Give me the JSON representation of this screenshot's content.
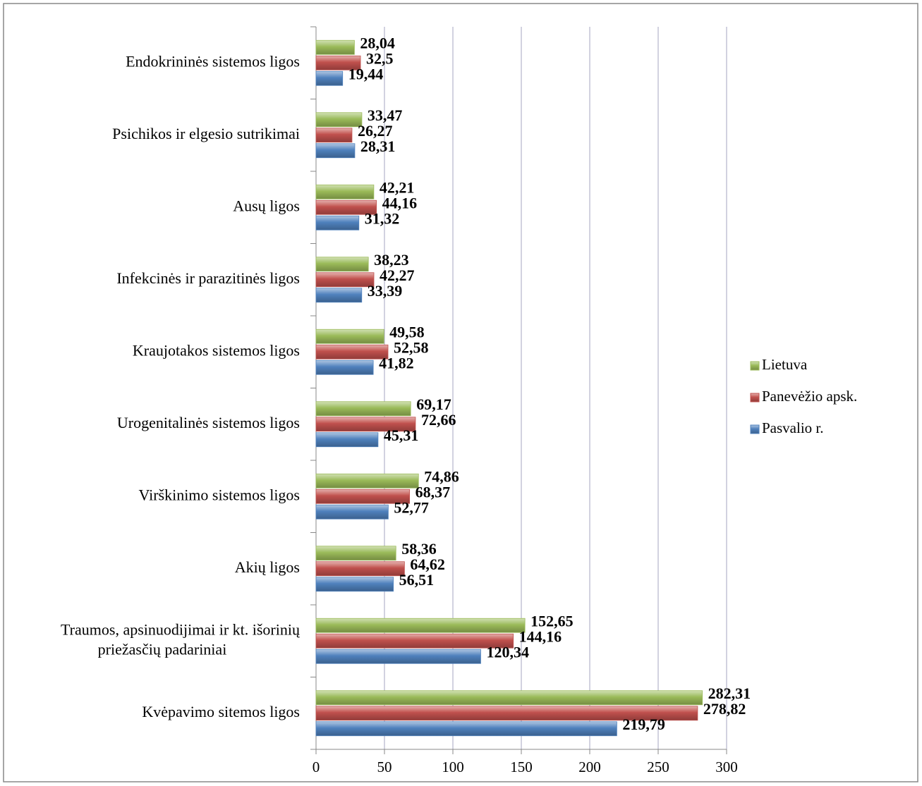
{
  "chart_data": {
    "type": "hbar",
    "categories": [
      "Endokrininės sistemos ligos",
      "Psichikos ir elgesio sutrikimai",
      "Ausų ligos",
      "Infekcinės ir parazitinės ligos",
      "Kraujotakos sistemos ligos",
      "Urogenitalinės sistemos ligos",
      "Virškinimo sistemos ligos",
      "Akių ligos",
      "Traumos, apsinuodijimai ir kt. išorinių priežasčių padariniai",
      "Kvėpavimo sitemos ligos"
    ],
    "series": [
      {
        "name": "Lietuva",
        "color": "#9bbb59",
        "values": [
          28.04,
          33.47,
          42.21,
          38.23,
          49.58,
          69.17,
          74.86,
          58.36,
          152.65,
          282.31
        ],
        "value_labels": [
          "28,04",
          "33,47",
          "42,21",
          "38,23",
          "49,58",
          "69,17",
          "74,86",
          "58,36",
          "152,65",
          "282,31"
        ]
      },
      {
        "name": "Panevėžio apsk.",
        "color": "#c0504d",
        "values": [
          32.5,
          26.27,
          44.16,
          42.27,
          52.58,
          72.66,
          68.37,
          64.62,
          144.16,
          278.82
        ],
        "value_labels": [
          "32,5",
          "26,27",
          "44,16",
          "42,27",
          "52,58",
          "72,66",
          "68,37",
          "64,62",
          "144,16",
          "278,82"
        ]
      },
      {
        "name": "Pasvalio r.",
        "color": "#4f81bd",
        "values": [
          19.44,
          28.31,
          31.32,
          33.39,
          41.82,
          45.31,
          52.77,
          56.51,
          120.34,
          219.79
        ],
        "value_labels": [
          "19,44",
          "28,31",
          "31,32",
          "33,39",
          "41,82",
          "45,31",
          "52,77",
          "56,51",
          "120,34",
          "219,79"
        ]
      }
    ],
    "xlim": [
      0,
      300
    ],
    "xticks": [
      0,
      50,
      100,
      150,
      200,
      250,
      300
    ],
    "grid": true,
    "legend": "right"
  }
}
